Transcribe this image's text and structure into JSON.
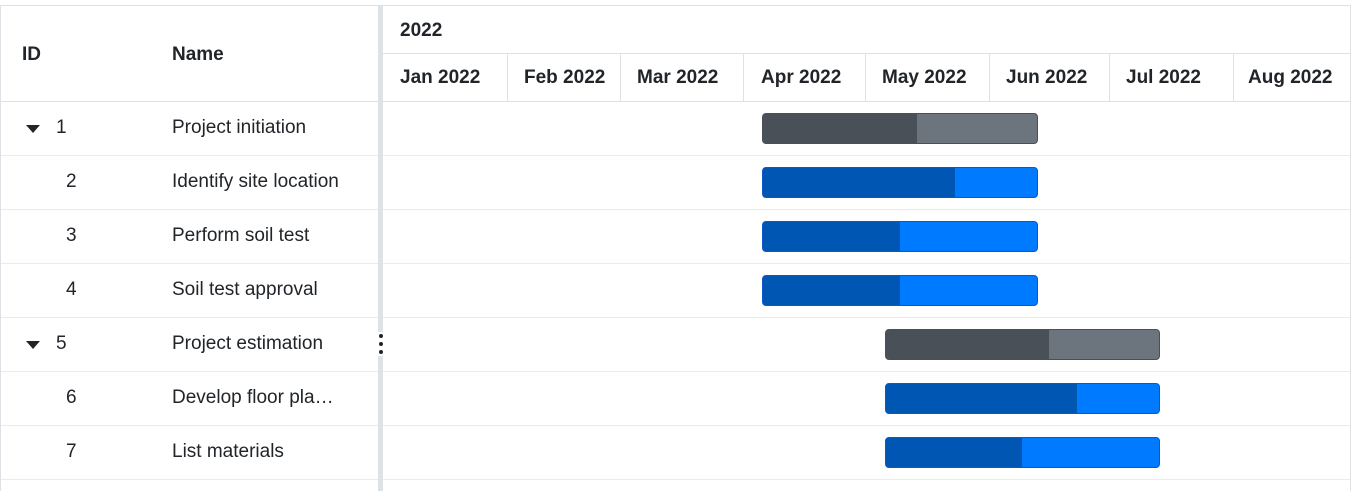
{
  "grid": {
    "header": {
      "id_label": "ID",
      "name_label": "Name"
    },
    "rows": [
      {
        "id": "1",
        "name": "Project initiation",
        "expandable": true
      },
      {
        "id": "2",
        "name": "Identify site location",
        "expandable": false
      },
      {
        "id": "3",
        "name": "Perform soil test",
        "expandable": false
      },
      {
        "id": "4",
        "name": "Soil test approval",
        "expandable": false
      },
      {
        "id": "5",
        "name": "Project estimation",
        "expandable": true
      },
      {
        "id": "6",
        "name": "Develop floor pla…",
        "expandable": false
      },
      {
        "id": "7",
        "name": "List materials",
        "expandable": false
      }
    ]
  },
  "timeline": {
    "year": "2022",
    "months": [
      "Jan 2022",
      "Feb 2022",
      "Mar 2022",
      "Apr 2022",
      "May 2022",
      "Jun 2022",
      "Jul 2022",
      "Aug 2022"
    ]
  },
  "tasks": [
    {
      "id": "1",
      "type": "parent",
      "start_month": 3.15,
      "end_month": 5.4,
      "progress": 0.56
    },
    {
      "id": "2",
      "type": "task",
      "start_month": 3.15,
      "end_month": 5.4,
      "progress": 0.7
    },
    {
      "id": "3",
      "type": "task",
      "start_month": 3.15,
      "end_month": 5.4,
      "progress": 0.5
    },
    {
      "id": "4",
      "type": "task",
      "start_month": 3.15,
      "end_month": 5.4,
      "progress": 0.5
    },
    {
      "id": "5",
      "type": "parent",
      "start_month": 4.15,
      "end_month": 6.4,
      "progress": 0.6
    },
    {
      "id": "6",
      "type": "task",
      "start_month": 4.15,
      "end_month": 6.4,
      "progress": 0.7
    },
    {
      "id": "7",
      "type": "task",
      "start_month": 4.15,
      "end_month": 6.4,
      "progress": 0.5
    }
  ],
  "colors": {
    "parent_bar": "#6c757d",
    "parent_progress": "#495057",
    "task_bar": "#007bff",
    "task_progress": "#0056b3"
  }
}
